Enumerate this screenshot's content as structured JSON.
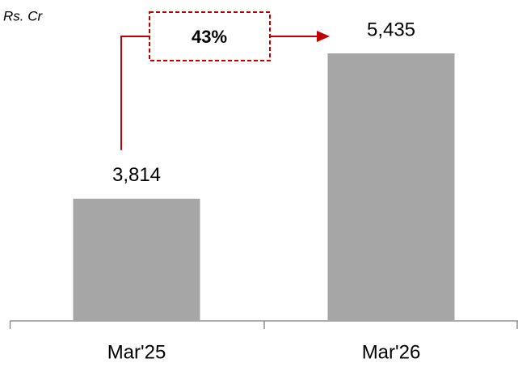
{
  "chart_data": {
    "type": "bar",
    "unit_label": "Rs. Cr",
    "annotation": "43%",
    "categories": [
      "Mar'25",
      "Mar'26"
    ],
    "values": [
      3814,
      5435
    ],
    "value_labels": [
      "3,814",
      "5,435"
    ],
    "color": "#a6a6a6",
    "annotation_color": "#c00000",
    "ylim": [
      2450,
      5850
    ]
  }
}
